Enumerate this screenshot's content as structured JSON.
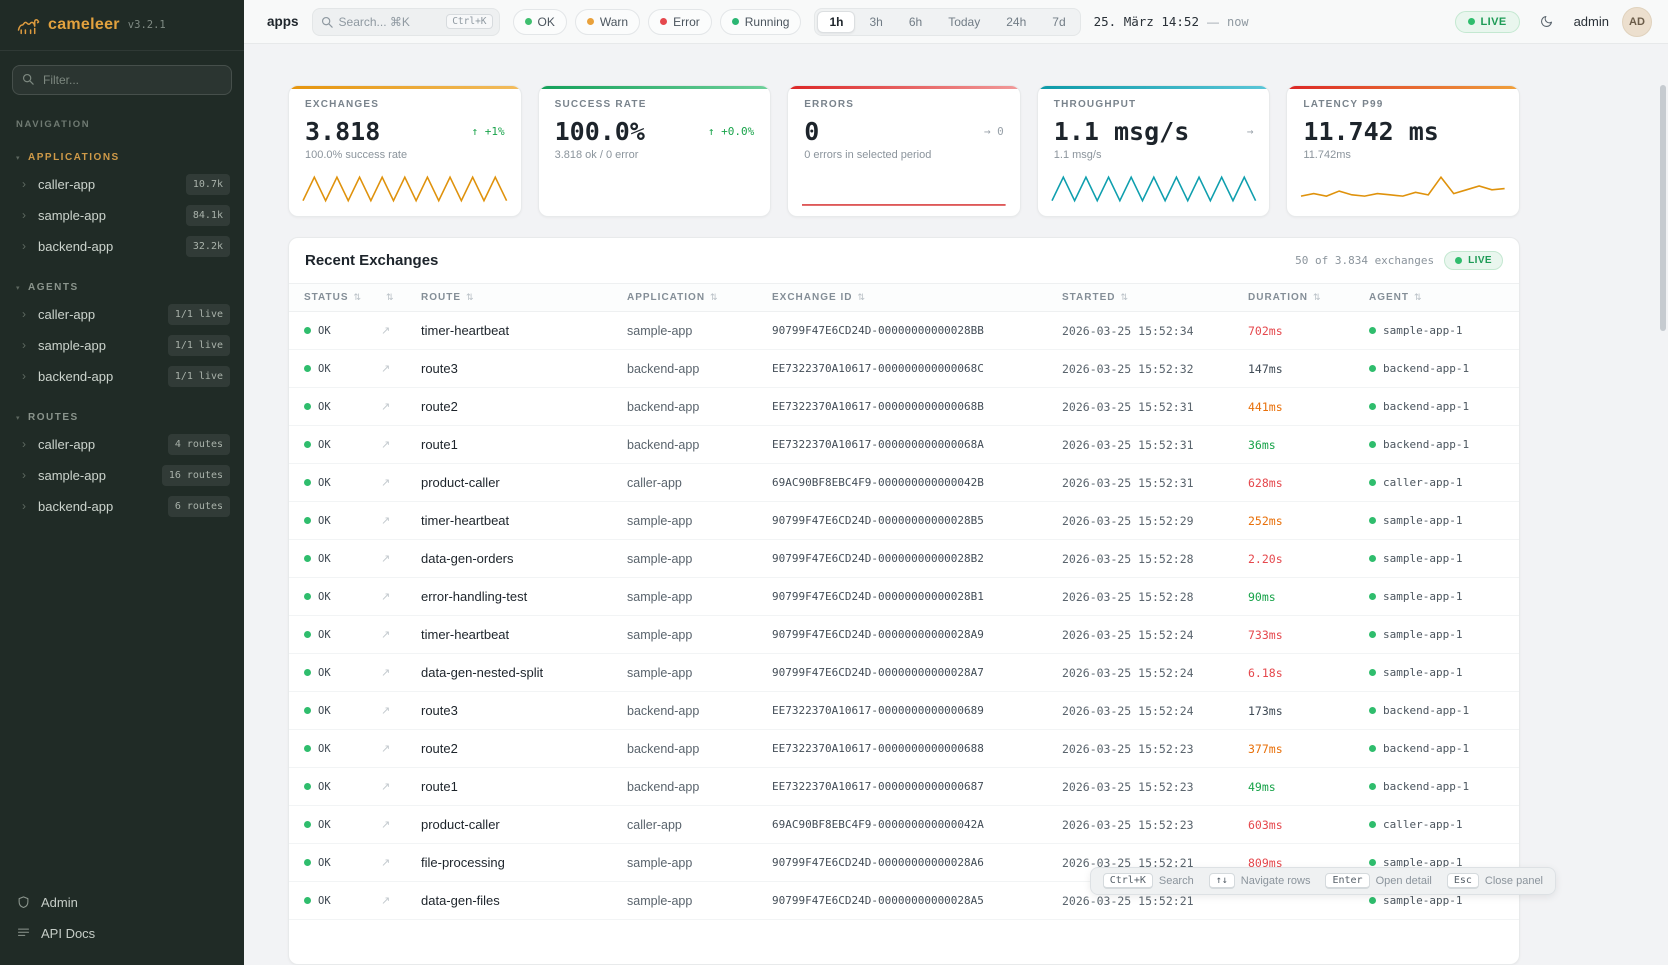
{
  "icons": {
    "sort": "⇅",
    "chevron_right": "›",
    "caret_down": "▾",
    "open_detail": "↗"
  },
  "sidebar": {
    "logo": {
      "name": "cameleer",
      "version": "v3.2.1"
    },
    "filter_placeholder": "Filter...",
    "nav_label": "NAVIGATION",
    "sections": [
      {
        "title": "APPLICATIONS",
        "items": [
          {
            "label": "caller-app",
            "badge": "10.7k"
          },
          {
            "label": "sample-app",
            "badge": "84.1k"
          },
          {
            "label": "backend-app",
            "badge": "32.2k"
          }
        ]
      },
      {
        "title": "AGENTS",
        "items": [
          {
            "label": "caller-app",
            "badge": "1/1 live"
          },
          {
            "label": "sample-app",
            "badge": "1/1 live"
          },
          {
            "label": "backend-app",
            "badge": "1/1 live"
          }
        ]
      },
      {
        "title": "ROUTES",
        "items": [
          {
            "label": "caller-app",
            "badge": "4 routes"
          },
          {
            "label": "sample-app",
            "badge": "16 routes"
          },
          {
            "label": "backend-app",
            "badge": "6 routes"
          }
        ]
      }
    ],
    "footer": [
      {
        "label": "Admin"
      },
      {
        "label": "API Docs"
      }
    ]
  },
  "header": {
    "context": "apps",
    "search": {
      "placeholder": "Search... ⌘K",
      "shortcut": "Ctrl+K"
    },
    "status_filters": [
      {
        "label": "OK",
        "color": "#3fbf6f"
      },
      {
        "label": "Warn",
        "color": "#e9a13b"
      },
      {
        "label": "Error",
        "color": "#e5484d"
      },
      {
        "label": "Running",
        "color": "#2bb673"
      }
    ],
    "time_ranges": [
      {
        "label": "1h",
        "cls": "active"
      },
      {
        "label": "3h",
        "cls": ""
      },
      {
        "label": "6h",
        "cls": ""
      },
      {
        "label": "Today",
        "cls": ""
      },
      {
        "label": "24h",
        "cls": ""
      },
      {
        "label": "7d",
        "cls": ""
      }
    ],
    "date_label": "25. März 14:52",
    "date_sep": "—",
    "date_now": "now",
    "live_label": "LIVE",
    "user": "admin",
    "avatar_initials": "AD"
  },
  "stats": [
    {
      "label": "EXCHANGES",
      "value": "3.818",
      "delta": "↑ +1%",
      "delta_class": "up",
      "sub": "100.0% success rate",
      "accent1": "#e5940d",
      "accent2": "#f2bc5e",
      "spark": [
        4,
        26,
        4,
        26,
        4,
        26,
        4,
        26,
        4,
        26,
        4,
        26,
        4,
        26,
        4,
        26,
        4,
        26,
        4
      ],
      "spark_color": "#df920c"
    },
    {
      "label": "SUCCESS RATE",
      "value": "100.0%",
      "delta": "↑ +0.0%",
      "delta_class": "up",
      "sub": "3.818 ok / 0 error",
      "accent1": "#14a05a",
      "accent2": "#6fd09a"
    },
    {
      "label": "ERRORS",
      "value": "0",
      "delta": "→ 0",
      "delta_class": "flat",
      "sub": "0 errors in selected period",
      "accent1": "#dc2626",
      "accent2": "#f19a9a",
      "spark": [
        0,
        0,
        0,
        0,
        0,
        0,
        0,
        0,
        0,
        0
      ],
      "spark_color": "#d94141"
    },
    {
      "label": "THROUGHPUT",
      "value": "1.1 msg/s",
      "delta": "→",
      "delta_class": "flat",
      "sub": "1.1 msg/s",
      "accent1": "#0d9aa8",
      "accent2": "#5bc6d8",
      "spark": [
        4,
        26,
        4,
        26,
        4,
        26,
        4,
        26,
        4,
        26,
        4,
        26,
        4,
        26,
        4,
        26,
        4,
        26,
        4
      ],
      "spark_color": "#0f9fae"
    },
    {
      "label": "LATENCY P99",
      "value": "11.742 ms",
      "delta": "",
      "delta_class": "none",
      "sub": "11.742ms",
      "accent1": "#dc2626",
      "accent2": "#f0a13c",
      "spark": [
        7,
        9,
        7,
        11,
        8,
        7,
        9,
        8,
        7,
        10,
        8,
        22,
        9,
        12,
        15,
        12,
        13
      ],
      "spark_color": "#df920c"
    }
  ],
  "table": {
    "title": "Recent Exchanges",
    "meta": "50 of 3.834 exchanges",
    "live_label": "LIVE",
    "columns": [
      {
        "label": "STATUS"
      },
      {
        "label": ""
      },
      {
        "label": "ROUTE"
      },
      {
        "label": "APPLICATION"
      },
      {
        "label": "EXCHANGE ID"
      },
      {
        "label": "STARTED"
      },
      {
        "label": "DURATION"
      },
      {
        "label": "AGENT"
      }
    ],
    "rows": [
      {
        "status": "OK",
        "route": "timer-heartbeat",
        "application": "sample-app",
        "exchange_id": "90799F47E6CD24D-00000000000028BB",
        "started": "2026-03-25 15:52:34",
        "duration": "702ms",
        "duration_class": "slow",
        "agent": "sample-app-1"
      },
      {
        "status": "OK",
        "route": "route3",
        "application": "backend-app",
        "exchange_id": "EE7322370A10617-000000000000068C",
        "started": "2026-03-25 15:52:32",
        "duration": "147ms",
        "duration_class": "neutral",
        "agent": "backend-app-1"
      },
      {
        "status": "OK",
        "route": "route2",
        "application": "backend-app",
        "exchange_id": "EE7322370A10617-000000000000068B",
        "started": "2026-03-25 15:52:31",
        "duration": "441ms",
        "duration_class": "warn",
        "agent": "backend-app-1"
      },
      {
        "status": "OK",
        "route": "route1",
        "application": "backend-app",
        "exchange_id": "EE7322370A10617-000000000000068A",
        "started": "2026-03-25 15:52:31",
        "duration": "36ms",
        "duration_class": "fast",
        "agent": "backend-app-1"
      },
      {
        "status": "OK",
        "route": "product-caller",
        "application": "caller-app",
        "exchange_id": "69AC90BF8EBC4F9-000000000000042B",
        "started": "2026-03-25 15:52:31",
        "duration": "628ms",
        "duration_class": "slow",
        "agent": "caller-app-1"
      },
      {
        "status": "OK",
        "route": "timer-heartbeat",
        "application": "sample-app",
        "exchange_id": "90799F47E6CD24D-00000000000028B5",
        "started": "2026-03-25 15:52:29",
        "duration": "252ms",
        "duration_class": "warn",
        "agent": "sample-app-1"
      },
      {
        "status": "OK",
        "route": "data-gen-orders",
        "application": "sample-app",
        "exchange_id": "90799F47E6CD24D-00000000000028B2",
        "started": "2026-03-25 15:52:28",
        "duration": "2.20s",
        "duration_class": "slow",
        "agent": "sample-app-1"
      },
      {
        "status": "OK",
        "route": "error-handling-test",
        "application": "sample-app",
        "exchange_id": "90799F47E6CD24D-00000000000028B1",
        "started": "2026-03-25 15:52:28",
        "duration": "90ms",
        "duration_class": "fast",
        "agent": "sample-app-1"
      },
      {
        "status": "OK",
        "route": "timer-heartbeat",
        "application": "sample-app",
        "exchange_id": "90799F47E6CD24D-00000000000028A9",
        "started": "2026-03-25 15:52:24",
        "duration": "733ms",
        "duration_class": "slow",
        "agent": "sample-app-1"
      },
      {
        "status": "OK",
        "route": "data-gen-nested-split",
        "application": "sample-app",
        "exchange_id": "90799F47E6CD24D-00000000000028A7",
        "started": "2026-03-25 15:52:24",
        "duration": "6.18s",
        "duration_class": "slow",
        "agent": "sample-app-1"
      },
      {
        "status": "OK",
        "route": "route3",
        "application": "backend-app",
        "exchange_id": "EE7322370A10617-0000000000000689",
        "started": "2026-03-25 15:52:24",
        "duration": "173ms",
        "duration_class": "neutral",
        "agent": "backend-app-1"
      },
      {
        "status": "OK",
        "route": "route2",
        "application": "backend-app",
        "exchange_id": "EE7322370A10617-0000000000000688",
        "started": "2026-03-25 15:52:23",
        "duration": "377ms",
        "duration_class": "warn",
        "agent": "backend-app-1"
      },
      {
        "status": "OK",
        "route": "route1",
        "application": "backend-app",
        "exchange_id": "EE7322370A10617-0000000000000687",
        "started": "2026-03-25 15:52:23",
        "duration": "49ms",
        "duration_class": "fast",
        "agent": "backend-app-1"
      },
      {
        "status": "OK",
        "route": "product-caller",
        "application": "caller-app",
        "exchange_id": "69AC90BF8EBC4F9-000000000000042A",
        "started": "2026-03-25 15:52:23",
        "duration": "603ms",
        "duration_class": "slow",
        "agent": "caller-app-1"
      },
      {
        "status": "OK",
        "route": "file-processing",
        "application": "sample-app",
        "exchange_id": "90799F47E6CD24D-00000000000028A6",
        "started": "2026-03-25 15:52:21",
        "duration": "809ms",
        "duration_class": "slow",
        "agent": "sample-app-1"
      },
      {
        "status": "OK",
        "route": "data-gen-files",
        "application": "sample-app",
        "exchange_id": "90799F47E6CD24D-00000000000028A5",
        "started": "2026-03-25 15:52:21",
        "duration": "",
        "duration_class": "neutral",
        "agent": "sample-app-1"
      }
    ]
  },
  "shortcuts": [
    {
      "key": "Ctrl+K",
      "label": "Search"
    },
    {
      "key": "↑↓",
      "label": "Navigate rows"
    },
    {
      "key": "Enter",
      "label": "Open detail"
    },
    {
      "key": "Esc",
      "label": "Close panel"
    }
  ]
}
